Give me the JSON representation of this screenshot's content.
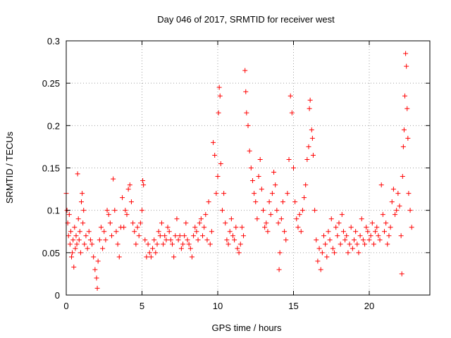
{
  "chart_data": {
    "type": "scatter",
    "title": "Day 046 of 2017, SRMTID for receiver west",
    "xlabel": "GPS time / hours",
    "ylabel": "SRMTID / TECUs",
    "xlim": [
      0,
      24
    ],
    "ylim": [
      0,
      0.3
    ],
    "xticks": [
      0,
      5,
      10,
      15,
      20
    ],
    "xtick_labels": [
      "0",
      "5",
      "10",
      "15",
      "20"
    ],
    "yticks": [
      0,
      0.05,
      0.1,
      0.15,
      0.2,
      0.25,
      0.3
    ],
    "ytick_labels": [
      "0",
      "0.05",
      "0.1",
      "0.15",
      "0.2",
      "0.25",
      "0.3"
    ],
    "grid": true,
    "marker": "+",
    "color": "#ff0000",
    "series": [
      {
        "name": "SRMTID",
        "points": [
          [
            0.0,
            0.12
          ],
          [
            0.05,
            0.1
          ],
          [
            0.1,
            0.085
          ],
          [
            0.15,
            0.07
          ],
          [
            0.2,
            0.095
          ],
          [
            0.25,
            0.06
          ],
          [
            0.3,
            0.075
          ],
          [
            0.35,
            0.045
          ],
          [
            0.4,
            0.05
          ],
          [
            0.45,
            0.065
          ],
          [
            0.5,
            0.033
          ],
          [
            0.55,
            0.08
          ],
          [
            0.6,
            0.055
          ],
          [
            0.65,
            0.07
          ],
          [
            0.7,
            0.06
          ],
          [
            0.75,
            0.143
          ],
          [
            0.8,
            0.09
          ],
          [
            0.85,
            0.065
          ],
          [
            0.9,
            0.075
          ],
          [
            0.95,
            0.05
          ],
          [
            1.0,
            0.11
          ],
          [
            1.05,
            0.12
          ],
          [
            1.1,
            0.085
          ],
          [
            1.15,
            0.1
          ],
          [
            1.2,
            0.06
          ],
          [
            1.3,
            0.07
          ],
          [
            1.4,
            0.055
          ],
          [
            1.5,
            0.075
          ],
          [
            1.6,
            0.065
          ],
          [
            1.7,
            0.06
          ],
          [
            1.8,
            0.045
          ],
          [
            1.9,
            0.03
          ],
          [
            2.0,
            0.02
          ],
          [
            2.05,
            0.008
          ],
          [
            2.1,
            0.04
          ],
          [
            2.2,
            0.065
          ],
          [
            2.3,
            0.08
          ],
          [
            2.4,
            0.055
          ],
          [
            2.5,
            0.075
          ],
          [
            2.6,
            0.065
          ],
          [
            2.7,
            0.1
          ],
          [
            2.8,
            0.095
          ],
          [
            2.9,
            0.085
          ],
          [
            3.0,
            0.07
          ],
          [
            3.1,
            0.137
          ],
          [
            3.2,
            0.1
          ],
          [
            3.3,
            0.075
          ],
          [
            3.4,
            0.06
          ],
          [
            3.5,
            0.045
          ],
          [
            3.6,
            0.08
          ],
          [
            3.7,
            0.115
          ],
          [
            3.8,
            0.08
          ],
          [
            3.9,
            0.1
          ],
          [
            4.0,
            0.095
          ],
          [
            4.1,
            0.125
          ],
          [
            4.2,
            0.13
          ],
          [
            4.3,
            0.11
          ],
          [
            4.4,
            0.085
          ],
          [
            4.5,
            0.075
          ],
          [
            4.6,
            0.06
          ],
          [
            4.7,
            0.08
          ],
          [
            4.8,
            0.07
          ],
          [
            4.9,
            0.085
          ],
          [
            5.0,
            0.1
          ],
          [
            5.05,
            0.135
          ],
          [
            5.1,
            0.13
          ],
          [
            5.2,
            0.065
          ],
          [
            5.3,
            0.045
          ],
          [
            5.4,
            0.06
          ],
          [
            5.5,
            0.05
          ],
          [
            5.6,
            0.045
          ],
          [
            5.7,
            0.055
          ],
          [
            5.8,
            0.065
          ],
          [
            5.9,
            0.05
          ],
          [
            6.0,
            0.06
          ],
          [
            6.1,
            0.075
          ],
          [
            6.2,
            0.07
          ],
          [
            6.3,
            0.085
          ],
          [
            6.4,
            0.06
          ],
          [
            6.5,
            0.07
          ],
          [
            6.6,
            0.065
          ],
          [
            6.7,
            0.08
          ],
          [
            6.8,
            0.075
          ],
          [
            6.9,
            0.065
          ],
          [
            7.0,
            0.06
          ],
          [
            7.1,
            0.045
          ],
          [
            7.2,
            0.07
          ],
          [
            7.3,
            0.09
          ],
          [
            7.4,
            0.065
          ],
          [
            7.5,
            0.07
          ],
          [
            7.6,
            0.055
          ],
          [
            7.7,
            0.06
          ],
          [
            7.8,
            0.07
          ],
          [
            7.9,
            0.085
          ],
          [
            8.0,
            0.065
          ],
          [
            8.1,
            0.06
          ],
          [
            8.2,
            0.055
          ],
          [
            8.3,
            0.045
          ],
          [
            8.4,
            0.07
          ],
          [
            8.5,
            0.08
          ],
          [
            8.6,
            0.075
          ],
          [
            8.7,
            0.065
          ],
          [
            8.8,
            0.085
          ],
          [
            8.9,
            0.09
          ],
          [
            9.0,
            0.07
          ],
          [
            9.1,
            0.08
          ],
          [
            9.2,
            0.095
          ],
          [
            9.3,
            0.065
          ],
          [
            9.4,
            0.11
          ],
          [
            9.5,
            0.06
          ],
          [
            9.6,
            0.075
          ],
          [
            9.7,
            0.18
          ],
          [
            9.8,
            0.165
          ],
          [
            9.9,
            0.12
          ],
          [
            10.0,
            0.14
          ],
          [
            10.05,
            0.215
          ],
          [
            10.1,
            0.245
          ],
          [
            10.15,
            0.235
          ],
          [
            10.2,
            0.155
          ],
          [
            10.3,
            0.1
          ],
          [
            10.4,
            0.12
          ],
          [
            10.5,
            0.085
          ],
          [
            10.6,
            0.065
          ],
          [
            10.7,
            0.06
          ],
          [
            10.8,
            0.075
          ],
          [
            10.9,
            0.09
          ],
          [
            11.0,
            0.07
          ],
          [
            11.1,
            0.065
          ],
          [
            11.2,
            0.08
          ],
          [
            11.3,
            0.055
          ],
          [
            11.4,
            0.05
          ],
          [
            11.5,
            0.06
          ],
          [
            11.6,
            0.08
          ],
          [
            11.7,
            0.07
          ],
          [
            11.8,
            0.265
          ],
          [
            11.85,
            0.24
          ],
          [
            11.9,
            0.215
          ],
          [
            12.0,
            0.2
          ],
          [
            12.1,
            0.17
          ],
          [
            12.2,
            0.15
          ],
          [
            12.3,
            0.135
          ],
          [
            12.4,
            0.12
          ],
          [
            12.5,
            0.11
          ],
          [
            12.6,
            0.09
          ],
          [
            12.7,
            0.14
          ],
          [
            12.8,
            0.16
          ],
          [
            12.9,
            0.125
          ],
          [
            13.0,
            0.1
          ],
          [
            13.1,
            0.08
          ],
          [
            13.2,
            0.085
          ],
          [
            13.3,
            0.075
          ],
          [
            13.4,
            0.11
          ],
          [
            13.5,
            0.095
          ],
          [
            13.6,
            0.12
          ],
          [
            13.7,
            0.145
          ],
          [
            13.8,
            0.13
          ],
          [
            13.9,
            0.1
          ],
          [
            14.0,
            0.085
          ],
          [
            14.05,
            0.03
          ],
          [
            14.1,
            0.05
          ],
          [
            14.2,
            0.09
          ],
          [
            14.3,
            0.11
          ],
          [
            14.4,
            0.075
          ],
          [
            14.5,
            0.065
          ],
          [
            14.6,
            0.12
          ],
          [
            14.7,
            0.16
          ],
          [
            14.8,
            0.235
          ],
          [
            14.9,
            0.215
          ],
          [
            15.0,
            0.15
          ],
          [
            15.1,
            0.11
          ],
          [
            15.2,
            0.09
          ],
          [
            15.3,
            0.08
          ],
          [
            15.4,
            0.095
          ],
          [
            15.5,
            0.075
          ],
          [
            15.6,
            0.1
          ],
          [
            15.7,
            0.115
          ],
          [
            15.8,
            0.13
          ],
          [
            15.9,
            0.16
          ],
          [
            16.0,
            0.175
          ],
          [
            16.05,
            0.22
          ],
          [
            16.1,
            0.23
          ],
          [
            16.2,
            0.195
          ],
          [
            16.25,
            0.185
          ],
          [
            16.3,
            0.165
          ],
          [
            16.4,
            0.1
          ],
          [
            16.5,
            0.065
          ],
          [
            16.6,
            0.04
          ],
          [
            16.7,
            0.055
          ],
          [
            16.8,
            0.03
          ],
          [
            16.9,
            0.05
          ],
          [
            17.0,
            0.07
          ],
          [
            17.1,
            0.06
          ],
          [
            17.2,
            0.045
          ],
          [
            17.3,
            0.075
          ],
          [
            17.4,
            0.065
          ],
          [
            17.5,
            0.09
          ],
          [
            17.6,
            0.055
          ],
          [
            17.7,
            0.05
          ],
          [
            17.8,
            0.08
          ],
          [
            17.9,
            0.07
          ],
          [
            18.0,
            0.085
          ],
          [
            18.1,
            0.06
          ],
          [
            18.2,
            0.095
          ],
          [
            18.3,
            0.075
          ],
          [
            18.4,
            0.065
          ],
          [
            18.5,
            0.07
          ],
          [
            18.6,
            0.05
          ],
          [
            18.7,
            0.06
          ],
          [
            18.8,
            0.08
          ],
          [
            18.9,
            0.055
          ],
          [
            19.0,
            0.065
          ],
          [
            19.1,
            0.075
          ],
          [
            19.2,
            0.06
          ],
          [
            19.3,
            0.05
          ],
          [
            19.4,
            0.07
          ],
          [
            19.5,
            0.09
          ],
          [
            19.6,
            0.065
          ],
          [
            19.7,
            0.06
          ],
          [
            19.8,
            0.08
          ],
          [
            19.9,
            0.075
          ],
          [
            20.0,
            0.065
          ],
          [
            20.1,
            0.07
          ],
          [
            20.2,
            0.085
          ],
          [
            20.3,
            0.06
          ],
          [
            20.4,
            0.075
          ],
          [
            20.5,
            0.08
          ],
          [
            20.6,
            0.07
          ],
          [
            20.7,
            0.065
          ],
          [
            20.8,
            0.13
          ],
          [
            20.9,
            0.095
          ],
          [
            21.0,
            0.075
          ],
          [
            21.1,
            0.085
          ],
          [
            21.2,
            0.06
          ],
          [
            21.3,
            0.07
          ],
          [
            21.4,
            0.08
          ],
          [
            21.5,
            0.11
          ],
          [
            21.6,
            0.125
          ],
          [
            21.7,
            0.095
          ],
          [
            21.8,
            0.1
          ],
          [
            21.9,
            0.12
          ],
          [
            22.0,
            0.105
          ],
          [
            22.1,
            0.07
          ],
          [
            22.15,
            0.025
          ],
          [
            22.2,
            0.14
          ],
          [
            22.25,
            0.175
          ],
          [
            22.3,
            0.195
          ],
          [
            22.35,
            0.235
          ],
          [
            22.4,
            0.285
          ],
          [
            22.45,
            0.27
          ],
          [
            22.5,
            0.22
          ],
          [
            22.55,
            0.185
          ],
          [
            22.6,
            0.12
          ],
          [
            22.7,
            0.1
          ],
          [
            22.8,
            0.08
          ]
        ]
      }
    ]
  }
}
